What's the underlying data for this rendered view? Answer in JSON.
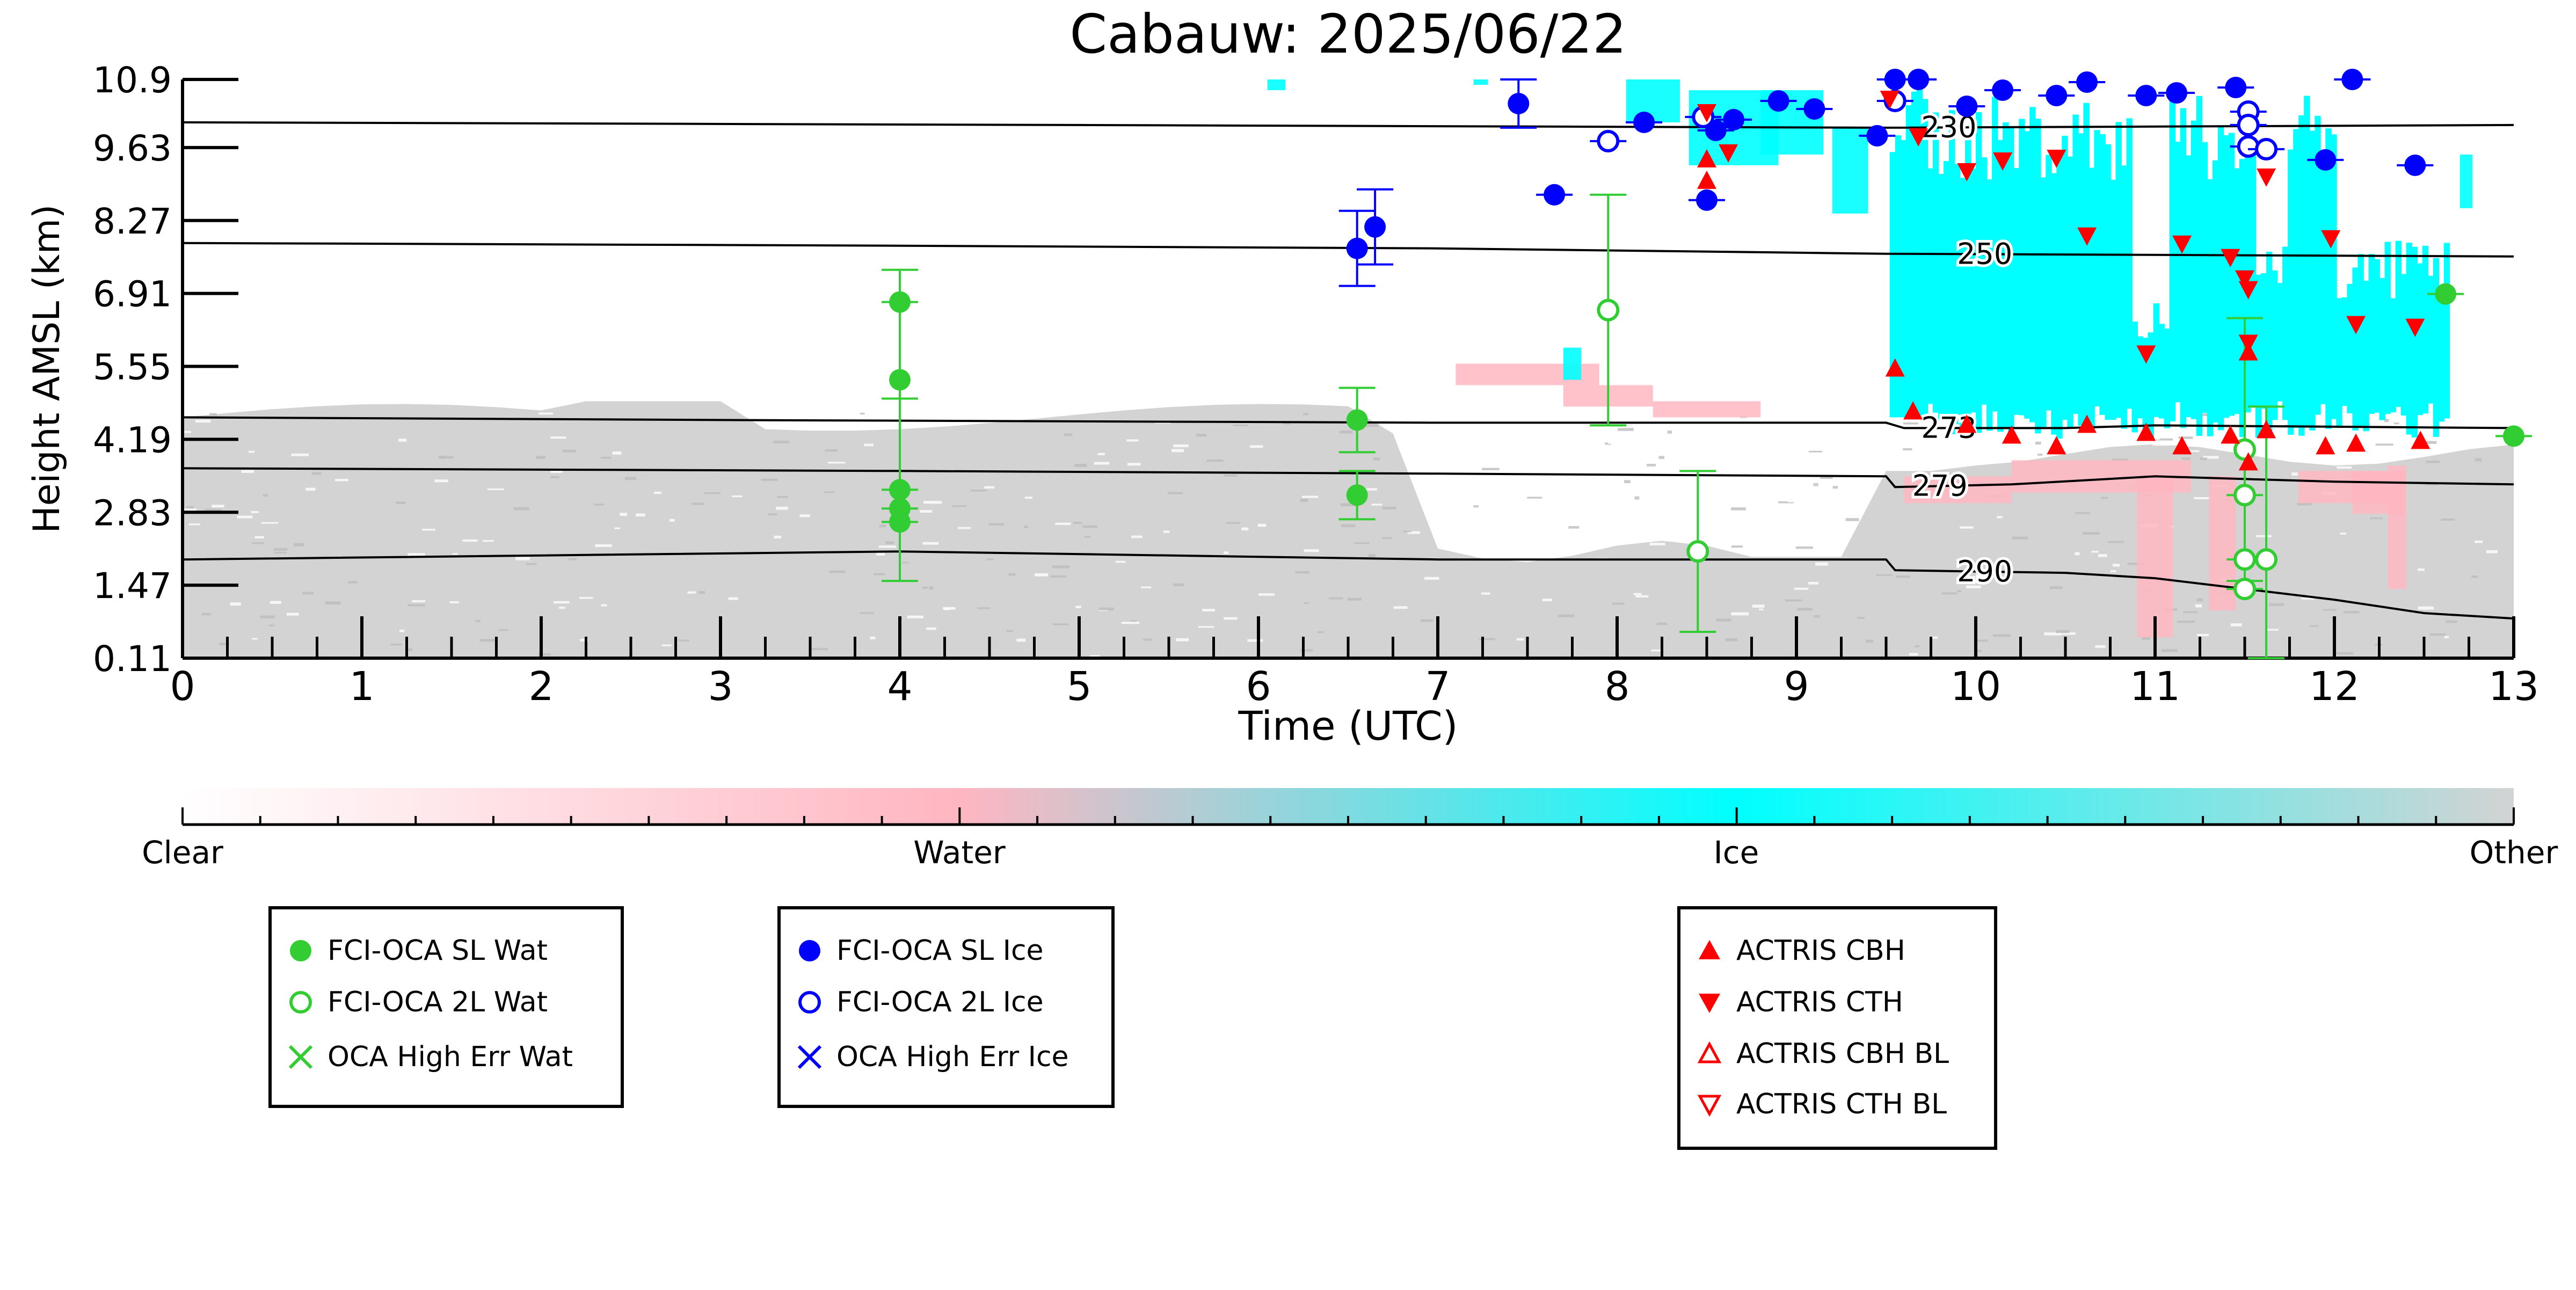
{
  "chart_data": {
    "type": "scatter",
    "title": "Cabauw: 2025/06/22",
    "xlabel": "Time (UTC)",
    "ylabel": "Height AMSL (km)",
    "xlim": [
      0,
      13
    ],
    "ylim": [
      0.11,
      10.9
    ],
    "xticks": [
      "0",
      "1",
      "2",
      "3",
      "4",
      "5",
      "6",
      "7",
      "8",
      "9",
      "10",
      "11",
      "12",
      "13"
    ],
    "yticks": [
      "0.11",
      "1.47",
      "2.83",
      "4.19",
      "5.55",
      "6.91",
      "8.27",
      "9.63",
      "10.9"
    ],
    "colorbar": {
      "labels": [
        "Clear",
        "Water",
        "Ice",
        "Other"
      ],
      "colors": [
        "#ffffff",
        "#ffb6c1",
        "#00ffff",
        "#d3d3d3"
      ]
    },
    "colors": {
      "water": "#32cd32",
      "ice": "#0000ff",
      "actris": "#ff0000",
      "other_class": "#d3d3d3",
      "ice_class": "#00ffff",
      "water_class": "#ffb6c1"
    },
    "temperature_contours": [
      {
        "label": "230",
        "label_x": 9.85,
        "points": [
          [
            0,
            10.1
          ],
          [
            5,
            10.05
          ],
          [
            9.5,
            10.0
          ],
          [
            13,
            10.05
          ]
        ]
      },
      {
        "label": "250",
        "label_x": 10.05,
        "points": [
          [
            0,
            7.85
          ],
          [
            4,
            7.8
          ],
          [
            7,
            7.75
          ],
          [
            9.5,
            7.65
          ],
          [
            13,
            7.6
          ]
        ]
      },
      {
        "label": "273",
        "label_x": 9.85,
        "points": [
          [
            0,
            4.6
          ],
          [
            3,
            4.55
          ],
          [
            7,
            4.5
          ],
          [
            9.5,
            4.5
          ],
          [
            9.6,
            4.4
          ],
          [
            10.5,
            4.4
          ],
          [
            11,
            4.45
          ],
          [
            13,
            4.4
          ]
        ]
      },
      {
        "label": "279",
        "label_x": 9.8,
        "points": [
          [
            0,
            3.65
          ],
          [
            4,
            3.6
          ],
          [
            7,
            3.55
          ],
          [
            9.5,
            3.5
          ],
          [
            9.55,
            3.3
          ],
          [
            10.2,
            3.35
          ],
          [
            11,
            3.5
          ],
          [
            12,
            3.4
          ],
          [
            13,
            3.35
          ]
        ]
      },
      {
        "label": "290",
        "label_x": 10.05,
        "points": [
          [
            0,
            1.95
          ],
          [
            4,
            2.1
          ],
          [
            7,
            1.95
          ],
          [
            9.5,
            1.95
          ],
          [
            9.55,
            1.75
          ],
          [
            10.5,
            1.7
          ],
          [
            11,
            1.6
          ],
          [
            11.5,
            1.4
          ],
          [
            12,
            1.2
          ],
          [
            12.5,
            0.95
          ],
          [
            13,
            0.85
          ]
        ]
      }
    ],
    "series": [
      {
        "name": "FCI-OCA SL Wat",
        "marker": "circle-filled",
        "color": "#32cd32",
        "points": [
          {
            "x": 4.0,
            "y": 6.75
          },
          {
            "x": 4.0,
            "y": 5.3,
            "err": 2.05
          },
          {
            "x": 4.0,
            "y": 3.25,
            "err": 1.7
          },
          {
            "x": 4.0,
            "y": 2.9
          },
          {
            "x": 4.0,
            "y": 2.65
          },
          {
            "x": 6.55,
            "y": 4.55,
            "err": 0.6
          },
          {
            "x": 6.55,
            "y": 3.15,
            "err": 0.45
          },
          {
            "x": 12.62,
            "y": 6.9
          },
          {
            "x": 13.0,
            "y": 4.25
          }
        ]
      },
      {
        "name": "FCI-OCA 2L Wat",
        "marker": "circle-open",
        "color": "#32cd32",
        "points": [
          {
            "x": 7.95,
            "y": 6.6,
            "err": 2.15
          },
          {
            "x": 8.45,
            "y": 2.1,
            "err": 1.5
          },
          {
            "x": 11.5,
            "y": 4.0,
            "err": 2.45
          },
          {
            "x": 11.5,
            "y": 3.15
          },
          {
            "x": 11.5,
            "y": 1.95
          },
          {
            "x": 11.5,
            "y": 1.4
          },
          {
            "x": 11.62,
            "y": 1.95,
            "err": 2.85
          }
        ]
      },
      {
        "name": "FCI-OCA SL Ice",
        "marker": "circle-filled",
        "color": "#0000ff",
        "points": [
          {
            "x": 6.55,
            "y": 7.75,
            "err": 0.7
          },
          {
            "x": 6.65,
            "y": 8.15,
            "err": 0.7
          },
          {
            "x": 7.45,
            "y": 10.45,
            "err": 0.45
          },
          {
            "x": 7.65,
            "y": 8.75
          },
          {
            "x": 8.15,
            "y": 10.1
          },
          {
            "x": 8.5,
            "y": 8.65
          },
          {
            "x": 8.55,
            "y": 9.95
          },
          {
            "x": 8.65,
            "y": 10.15
          },
          {
            "x": 8.9,
            "y": 10.5
          },
          {
            "x": 9.1,
            "y": 10.35
          },
          {
            "x": 9.45,
            "y": 9.85
          },
          {
            "x": 9.55,
            "y": 10.9
          },
          {
            "x": 9.68,
            "y": 10.9
          },
          {
            "x": 9.95,
            "y": 10.4
          },
          {
            "x": 10.15,
            "y": 10.7
          },
          {
            "x": 10.45,
            "y": 10.6
          },
          {
            "x": 10.62,
            "y": 10.85
          },
          {
            "x": 10.95,
            "y": 10.6
          },
          {
            "x": 11.12,
            "y": 10.65
          },
          {
            "x": 11.45,
            "y": 10.75
          },
          {
            "x": 11.95,
            "y": 9.4
          },
          {
            "x": 12.1,
            "y": 10.9
          },
          {
            "x": 12.45,
            "y": 9.3
          }
        ]
      },
      {
        "name": "FCI-OCA 2L Ice",
        "marker": "circle-open",
        "color": "#0000ff",
        "points": [
          {
            "x": 7.95,
            "y": 9.75
          },
          {
            "x": 8.48,
            "y": 10.2
          },
          {
            "x": 9.55,
            "y": 10.5
          },
          {
            "x": 11.52,
            "y": 10.3
          },
          {
            "x": 11.52,
            "y": 10.05
          },
          {
            "x": 11.52,
            "y": 9.65
          },
          {
            "x": 11.62,
            "y": 9.6
          }
        ]
      },
      {
        "name": "OCA High Err Wat",
        "marker": "x",
        "color": "#32cd32",
        "points": []
      },
      {
        "name": "OCA High Err Ice",
        "marker": "x",
        "color": "#0000ff",
        "points": []
      },
      {
        "name": "ACTRIS CBH",
        "marker": "triangle-up-filled",
        "color": "#ff0000",
        "points": [
          {
            "x": 8.5,
            "y": 9.4
          },
          {
            "x": 8.5,
            "y": 9.0
          },
          {
            "x": 9.55,
            "y": 5.5
          },
          {
            "x": 9.65,
            "y": 4.7
          },
          {
            "x": 9.95,
            "y": 4.45
          },
          {
            "x": 10.2,
            "y": 4.25
          },
          {
            "x": 10.45,
            "y": 4.05
          },
          {
            "x": 10.62,
            "y": 4.45
          },
          {
            "x": 10.95,
            "y": 4.3
          },
          {
            "x": 11.15,
            "y": 4.05
          },
          {
            "x": 11.42,
            "y": 4.25
          },
          {
            "x": 11.52,
            "y": 5.8
          },
          {
            "x": 11.52,
            "y": 3.75
          },
          {
            "x": 11.62,
            "y": 4.35
          },
          {
            "x": 11.95,
            "y": 4.05
          },
          {
            "x": 12.12,
            "y": 4.1
          },
          {
            "x": 12.48,
            "y": 4.15
          }
        ]
      },
      {
        "name": "ACTRIS CTH",
        "marker": "triangle-down-filled",
        "color": "#ff0000",
        "points": [
          {
            "x": 8.5,
            "y": 10.3
          },
          {
            "x": 8.62,
            "y": 9.55
          },
          {
            "x": 9.52,
            "y": 10.55
          },
          {
            "x": 9.68,
            "y": 9.85
          },
          {
            "x": 9.95,
            "y": 9.2
          },
          {
            "x": 10.15,
            "y": 9.4
          },
          {
            "x": 10.45,
            "y": 9.45
          },
          {
            "x": 10.62,
            "y": 8.0
          },
          {
            "x": 10.95,
            "y": 5.8
          },
          {
            "x": 11.15,
            "y": 7.85
          },
          {
            "x": 11.42,
            "y": 7.6
          },
          {
            "x": 11.5,
            "y": 7.2
          },
          {
            "x": 11.52,
            "y": 7.0
          },
          {
            "x": 11.52,
            "y": 6.0
          },
          {
            "x": 11.62,
            "y": 9.1
          },
          {
            "x": 11.98,
            "y": 7.95
          },
          {
            "x": 12.12,
            "y": 6.35
          },
          {
            "x": 12.45,
            "y": 6.3
          }
        ]
      },
      {
        "name": "ACTRIS CBH BL",
        "marker": "triangle-up-open",
        "color": "#ff0000",
        "points": []
      },
      {
        "name": "ACTRIS CTH BL",
        "marker": "triangle-down-open",
        "color": "#ff0000",
        "points": []
      }
    ],
    "legends": [
      [
        "FCI-OCA SL Wat",
        "FCI-OCA 2L Wat",
        "OCA High Err Wat"
      ],
      [
        "FCI-OCA SL Ice",
        "FCI-OCA 2L Ice",
        "OCA High Err Ice"
      ],
      [
        "ACTRIS CBH",
        "ACTRIS CTH",
        "ACTRIS CBH BL",
        "ACTRIS CTH BL"
      ]
    ]
  }
}
